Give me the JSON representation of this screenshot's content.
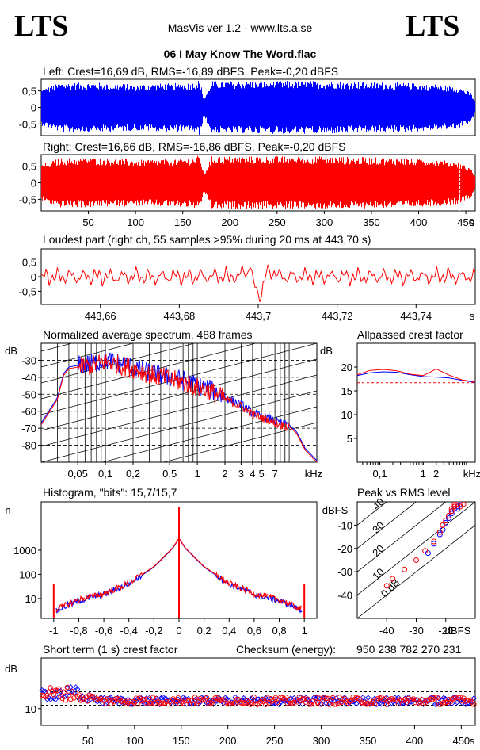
{
  "header": {
    "logo_left": "LTS",
    "logo_right": "LTS",
    "app_title": "MasVis ver 1.2 - www.lts.a.se",
    "file_title": "06 I May Know The Word.flac"
  },
  "colors": {
    "blue": "#0000ff",
    "red": "#ff0000",
    "frame": "#000000"
  },
  "chart_data": [
    {
      "id": "left",
      "type": "line",
      "title": "Left: Crest=16,69 dB, RMS=-16,89 dBFS, Peak=-0,20 dBFS",
      "color": "#0000ff",
      "ylim": [
        -0.85,
        0.85
      ],
      "yticks": [
        {
          "v": 0.5,
          "t": "0,5"
        },
        {
          "v": 0,
          "t": "0"
        },
        {
          "v": -0.5,
          "t": "-0,5"
        }
      ],
      "xlim": [
        0,
        460
      ],
      "envelope": [
        [
          0,
          0.55
        ],
        [
          20,
          0.75
        ],
        [
          60,
          0.75
        ],
        [
          100,
          0.7
        ],
        [
          160,
          0.75
        ],
        [
          168,
          0.85
        ],
        [
          172,
          0.25
        ],
        [
          180,
          0.8
        ],
        [
          300,
          0.8
        ],
        [
          380,
          0.75
        ],
        [
          420,
          0.7
        ],
        [
          440,
          0.65
        ],
        [
          455,
          0.45
        ],
        [
          460,
          0.15
        ],
        [
          462,
          0.05
        ],
        [
          465,
          0
        ]
      ]
    },
    {
      "id": "right",
      "type": "line",
      "title": "Right: Crest=16,66 dB, RMS=-16,86 dBFS, Peak=-0,20 dBFS",
      "color": "#ff0000",
      "ylim": [
        -0.85,
        0.85
      ],
      "yticks": [
        {
          "v": 0.5,
          "t": "0,5"
        },
        {
          "v": 0,
          "t": "0"
        },
        {
          "v": -0.5,
          "t": "-0,5"
        }
      ],
      "xlim": [
        0,
        460
      ],
      "xticks": [
        {
          "v": 50,
          "t": "50"
        },
        {
          "v": 100,
          "t": "100"
        },
        {
          "v": 150,
          "t": "150"
        },
        {
          "v": 200,
          "t": "200"
        },
        {
          "v": 250,
          "t": "250"
        },
        {
          "v": 300,
          "t": "300"
        },
        {
          "v": 350,
          "t": "350"
        },
        {
          "v": 400,
          "t": "400"
        },
        {
          "v": 450,
          "t": "450"
        }
      ],
      "xunit": "s",
      "marker_x": 443.7,
      "envelope": [
        [
          0,
          0.55
        ],
        [
          20,
          0.75
        ],
        [
          60,
          0.75
        ],
        [
          100,
          0.7
        ],
        [
          160,
          0.75
        ],
        [
          168,
          0.85
        ],
        [
          172,
          0.25
        ],
        [
          180,
          0.8
        ],
        [
          300,
          0.8
        ],
        [
          380,
          0.75
        ],
        [
          420,
          0.7
        ],
        [
          440,
          0.65
        ],
        [
          455,
          0.45
        ],
        [
          460,
          0.15
        ],
        [
          462,
          0.05
        ],
        [
          465,
          0
        ]
      ]
    },
    {
      "id": "loudest",
      "type": "line",
      "title": "Loudest part (right ch, 55 samples >95% during 20 ms at 443,70 s)",
      "color": "#ff0000",
      "ylim": [
        -0.95,
        0.95
      ],
      "yticks": [
        {
          "v": 0.5,
          "t": "0,5"
        },
        {
          "v": 0,
          "t": "0"
        },
        {
          "v": -0.5,
          "t": "-0,5"
        }
      ],
      "xlim": [
        443.645,
        443.755
      ],
      "xticks": [
        {
          "v": 443.66,
          "t": "443,66"
        },
        {
          "v": 443.68,
          "t": "443,68"
        },
        {
          "v": 443.7,
          "t": "443,7"
        },
        {
          "v": 443.72,
          "t": "443,72"
        },
        {
          "v": 443.74,
          "t": "443,74"
        }
      ],
      "xunit": "s"
    },
    {
      "id": "spectrum",
      "type": "line",
      "title": "Normalized average spectrum, 488 frames",
      "ylabel": "dB",
      "ylim": [
        -90,
        -20
      ],
      "yticks": [
        {
          "v": -30,
          "t": "-30"
        },
        {
          "v": -40,
          "t": "-40"
        },
        {
          "v": -50,
          "t": "-50"
        },
        {
          "v": -60,
          "t": "-60"
        },
        {
          "v": -70,
          "t": "-70"
        },
        {
          "v": -80,
          "t": "-80"
        }
      ],
      "xlim": [
        0.02,
        20
      ],
      "xscale": "log",
      "xticks": [
        {
          "v": 0.05,
          "t": "0,05"
        },
        {
          "v": 0.1,
          "t": "0,1"
        },
        {
          "v": 0.2,
          "t": "0,2"
        },
        {
          "v": 0.5,
          "t": "0,5"
        },
        {
          "v": 1,
          "t": "1"
        },
        {
          "v": 2,
          "t": "2"
        },
        {
          "v": 3,
          "t": "3"
        },
        {
          "v": 4,
          "t": "4"
        },
        {
          "v": 5,
          "t": "5"
        },
        {
          "v": 7,
          "t": "7"
        }
      ],
      "xunit": "kHz",
      "series": [
        {
          "color": "#0000ff",
          "x": [
            0.02,
            0.03,
            0.035,
            0.04,
            0.05,
            0.07,
            0.1,
            0.15,
            0.2,
            0.3,
            0.5,
            0.7,
            1,
            1.5,
            2,
            3,
            4,
            5,
            6,
            7,
            8,
            10,
            12,
            15,
            20
          ],
          "y": [
            -67,
            -52,
            -38,
            -34,
            -33,
            -32,
            -30,
            -32,
            -34,
            -37,
            -40,
            -42,
            -45,
            -48,
            -52,
            -56,
            -61,
            -63,
            -64,
            -66,
            -67,
            -68,
            -72,
            -82,
            -89
          ]
        },
        {
          "color": "#ff0000",
          "x": [
            0.02,
            0.03,
            0.035,
            0.04,
            0.05,
            0.07,
            0.1,
            0.15,
            0.2,
            0.3,
            0.5,
            0.7,
            1,
            1.5,
            2,
            3,
            4,
            5,
            6,
            7,
            8,
            10,
            12,
            15,
            20
          ],
          "y": [
            -68,
            -53,
            -39,
            -35,
            -34,
            -33,
            -31,
            -33,
            -35,
            -38,
            -41,
            -43,
            -46,
            -49,
            -53,
            -57,
            -62,
            -64,
            -65,
            -67,
            -68,
            -69,
            -73,
            -83,
            -90
          ]
        }
      ]
    },
    {
      "id": "allpass",
      "type": "line",
      "title": "Allpassed crest factor",
      "ylabel": "dB",
      "ylim": [
        0,
        25
      ],
      "yticks": [
        {
          "v": 5,
          "t": "5"
        },
        {
          "v": 10,
          "t": "10"
        },
        {
          "v": 15,
          "t": "15"
        },
        {
          "v": 20,
          "t": "20"
        }
      ],
      "xlim": [
        0.03,
        16
      ],
      "xscale": "log",
      "xticks": [
        {
          "v": 0.1,
          "t": "0,1"
        },
        {
          "v": 1,
          "t": "1"
        },
        {
          "v": 2,
          "t": "2"
        }
      ],
      "xunit": "kHz",
      "reference": 16.7,
      "series": [
        {
          "color": "#0000ff",
          "x": [
            0.03,
            0.06,
            0.12,
            0.25,
            0.5,
            1,
            2,
            4,
            8,
            16
          ],
          "y": [
            18.2,
            18.8,
            19.0,
            18.9,
            18.4,
            18.0,
            17.9,
            17.7,
            17.2,
            16.8
          ]
        },
        {
          "color": "#ff0000",
          "x": [
            0.03,
            0.06,
            0.12,
            0.25,
            0.5,
            1,
            2,
            4,
            8,
            16
          ],
          "y": [
            18.4,
            19.3,
            19.5,
            19.2,
            18.5,
            18.2,
            19.6,
            18.3,
            17.3,
            16.9
          ]
        }
      ]
    },
    {
      "id": "histogram",
      "type": "line",
      "title": "Histogram, \"bits\": 15,7/15,7",
      "ylabel": "n",
      "yscale": "log",
      "ylim": [
        1.5,
        100000
      ],
      "yticks": [
        {
          "v": 10,
          "t": "10"
        },
        {
          "v": 100,
          "t": "100"
        },
        {
          "v": 1000,
          "t": "1000"
        }
      ],
      "xlim": [
        -1.1,
        1.1
      ],
      "xticks": [
        {
          "v": -1,
          "t": "-1"
        },
        {
          "v": -0.8,
          "t": "-0,8"
        },
        {
          "v": -0.6,
          "t": "-0,6"
        },
        {
          "v": -0.4,
          "t": "-0,4"
        },
        {
          "v": -0.2,
          "t": "-0,2"
        },
        {
          "v": 0,
          "t": "0"
        },
        {
          "v": 0.2,
          "t": "0,2"
        },
        {
          "v": 0.4,
          "t": "0,4"
        },
        {
          "v": 0.6,
          "t": "0,6"
        },
        {
          "v": 0.8,
          "t": "0,8"
        },
        {
          "v": 1,
          "t": "1"
        }
      ],
      "series": [
        {
          "color": "#0000ff",
          "x": [
            -0.98,
            -0.9,
            -0.8,
            -0.6,
            -0.4,
            -0.2,
            -0.05,
            0,
            0.05,
            0.2,
            0.4,
            0.6,
            0.8,
            0.9,
            0.98
          ],
          "y": [
            3,
            5,
            8,
            15,
            40,
            200,
            1200,
            3000,
            1200,
            200,
            40,
            15,
            8,
            5,
            3
          ]
        },
        {
          "color": "#ff0000",
          "x": [
            -0.98,
            -0.9,
            -0.8,
            -0.6,
            -0.4,
            -0.2,
            -0.05,
            0,
            0.05,
            0.2,
            0.4,
            0.6,
            0.8,
            0.9,
            0.98
          ],
          "y": [
            3.5,
            5.5,
            9,
            16,
            42,
            210,
            1250,
            3100,
            1250,
            210,
            42,
            16,
            9,
            5.5,
            3.5
          ]
        }
      ],
      "edge_spikes": [
        {
          "x": -1,
          "y": 40
        },
        {
          "x": 1,
          "y": 40
        },
        {
          "x": 0,
          "y": 60000
        }
      ]
    },
    {
      "id": "peakrms",
      "type": "scatter",
      "title": "Peak vs RMS level",
      "ylabel": "dBFS",
      "xlabel": "dBFS",
      "xlim": [
        -50,
        -10
      ],
      "ylim": [
        -50,
        0
      ],
      "xticks": [
        {
          "v": -40,
          "t": "-40"
        },
        {
          "v": -30,
          "t": "-30"
        },
        {
          "v": -20,
          "t": "-20"
        }
      ],
      "yticks": [
        {
          "v": -10,
          "t": "-10"
        },
        {
          "v": -20,
          "t": "-20"
        },
        {
          "v": -30,
          "t": "-30"
        },
        {
          "v": -40,
          "t": "-40"
        }
      ],
      "diagonal_labels": [
        "0 dB",
        "10",
        "20",
        "30",
        "40"
      ],
      "series": [
        {
          "color": "#0000ff",
          "points": [
            [
              -16,
              -2
            ],
            [
              -15,
              -1
            ],
            [
              -17,
              -3
            ],
            [
              -18,
              -5
            ],
            [
              -19,
              -7
            ],
            [
              -20,
              -9
            ],
            [
              -21,
              -12
            ],
            [
              -22,
              -14
            ],
            [
              -18,
              -4
            ],
            [
              -17,
              -2
            ],
            [
              -16,
              -3
            ],
            [
              -24,
              -18
            ],
            [
              -26,
              -22
            ],
            [
              -20,
              -8
            ],
            [
              -19,
              -6
            ]
          ]
        },
        {
          "color": "#ff0000",
          "points": [
            [
              -16,
              -1
            ],
            [
              -15,
              -2
            ],
            [
              -17,
              -2
            ],
            [
              -18,
              -4
            ],
            [
              -19,
              -6
            ],
            [
              -20,
              -8
            ],
            [
              -22,
              -13
            ],
            [
              -24,
              -17
            ],
            [
              -27,
              -21
            ],
            [
              -30,
              -25
            ],
            [
              -34,
              -29
            ],
            [
              -38,
              -33
            ],
            [
              -40,
              -36
            ],
            [
              -18,
              -3
            ],
            [
              -17,
              -1
            ],
            [
              -14,
              -1
            ],
            [
              -21,
              -10
            ]
          ]
        }
      ]
    },
    {
      "id": "shortcrest",
      "type": "scatter",
      "title": "Short term (1 s) crest factor",
      "ylabel": "dB",
      "ylim": [
        5,
        25
      ],
      "yticks": [
        {
          "v": 10,
          "t": "10"
        }
      ],
      "xlim": [
        0,
        465
      ],
      "xticks": [
        {
          "v": 50,
          "t": "50"
        },
        {
          "v": 100,
          "t": "100"
        },
        {
          "v": 150,
          "t": "150"
        },
        {
          "v": 200,
          "t": "200"
        },
        {
          "v": 250,
          "t": "250"
        },
        {
          "v": 300,
          "t": "300"
        },
        {
          "v": 350,
          "t": "350"
        },
        {
          "v": 400,
          "t": "400"
        },
        {
          "v": 450,
          "t": "450"
        }
      ],
      "xunit": "s",
      "dashed_levels": [
        11,
        15
      ],
      "checksum_label": "Checksum (energy):",
      "checksum_value": "950 238 782 270 231"
    }
  ]
}
